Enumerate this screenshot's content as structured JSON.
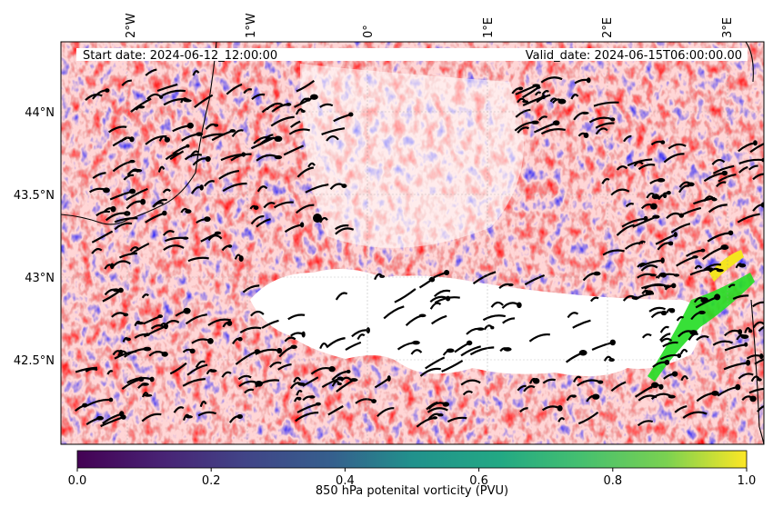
{
  "figure": {
    "start_date": "Start date: 2024-06-12_12:00:00",
    "valid_date": "Valid_date: 2024-06-15T06:00:00.00"
  },
  "map": {
    "lon_labels": [
      "2°W",
      "1°W",
      "0°",
      "1°E",
      "2°E",
      "3°E"
    ],
    "lat_labels": [
      "44°N",
      "43.5°N",
      "43°N",
      "42.5°N"
    ],
    "field_colors": {
      "positive": "#ff2020",
      "negative": "#1a1aff",
      "neutral": "#ffffff",
      "background_tint": "#ffd9d9"
    },
    "marker_label": "city-marker"
  },
  "colorbar": {
    "label": "850 hPa potenital vorticity (PVU)",
    "colormap": "viridis",
    "range": [
      0.0,
      1.0
    ],
    "ticks": [
      "0.0",
      "0.2",
      "0.4",
      "0.6",
      "0.8",
      "1.0"
    ]
  }
}
